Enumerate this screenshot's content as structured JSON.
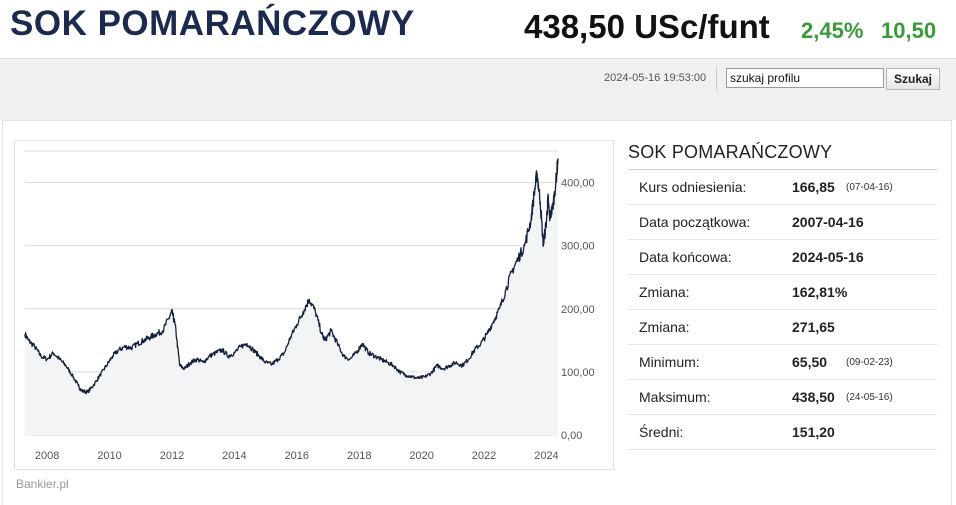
{
  "header": {
    "title": "SOK POMARAŃCZOWY",
    "price": "438,50 USc/funt",
    "change_percent": "2,45%",
    "change_value": "10,50"
  },
  "toolbar": {
    "timestamp": "2024-05-16 19:53:00",
    "search_value": "szukaj profilu",
    "search_button": "Szukaj"
  },
  "colors": {
    "title": "#1c2a4e",
    "positive": "#3a9a3a",
    "line": "#14213d",
    "area": "#f3f4f6"
  },
  "brand": "Bankier.pl",
  "info": {
    "title": "SOK POMARAŃCZOWY",
    "rows": [
      {
        "label": "Kurs odniesienia:",
        "value": "166,85",
        "date": "(07-04-16)"
      },
      {
        "label": "Data początkowa:",
        "value": "2007-04-16",
        "date": ""
      },
      {
        "label": "Data końcowa:",
        "value": "2024-05-16",
        "date": ""
      },
      {
        "label": "Zmiana:",
        "value": "162,81%",
        "date": ""
      },
      {
        "label": "Zmiana:",
        "value": "271,65",
        "date": ""
      },
      {
        "label": "Minimum:",
        "value": "65,50",
        "date": "(09-02-23)"
      },
      {
        "label": "Maksimum:",
        "value": "438,50",
        "date": "(24-05-16)"
      },
      {
        "label": "Średni:",
        "value": "151,20",
        "date": ""
      }
    ]
  },
  "chart_data": {
    "type": "area",
    "title": "",
    "xlabel": "",
    "ylabel": "",
    "x_range": [
      2007.29,
      2024.37
    ],
    "ylim": [
      0,
      450
    ],
    "grid": true,
    "legend": "none",
    "x_ticks": [
      2008,
      2010,
      2012,
      2014,
      2016,
      2018,
      2020,
      2022,
      2024
    ],
    "x_tick_labels": [
      "2008",
      "2010",
      "2012",
      "2014",
      "2016",
      "2018",
      "2020",
      "2022",
      "2024"
    ],
    "y_ticks": [
      0,
      100,
      200,
      300,
      400
    ],
    "y_tick_labels": [
      "0,00",
      "100,00",
      "200,00",
      "300,00",
      "400,00"
    ],
    "series": [
      {
        "x": [
          2007.29,
          2007.4,
          2007.6,
          2007.8,
          2008.0,
          2008.2,
          2008.4,
          2008.6,
          2008.8,
          2009.0,
          2009.1,
          2009.3,
          2009.5,
          2009.7,
          2009.9,
          2010.1,
          2010.3,
          2010.5,
          2010.7,
          2010.9,
          2011.1,
          2011.3,
          2011.5,
          2011.7,
          2011.9,
          2012.0,
          2012.1,
          2012.25,
          2012.4,
          2012.6,
          2012.8,
          2013.0,
          2013.2,
          2013.4,
          2013.6,
          2013.8,
          2014.0,
          2014.2,
          2014.4,
          2014.6,
          2014.8,
          2015.0,
          2015.2,
          2015.4,
          2015.6,
          2015.8,
          2016.0,
          2016.2,
          2016.4,
          2016.6,
          2016.8,
          2016.9,
          2017.1,
          2017.3,
          2017.5,
          2017.7,
          2017.9,
          2018.1,
          2018.3,
          2018.5,
          2018.7,
          2018.9,
          2019.1,
          2019.3,
          2019.5,
          2019.7,
          2019.9,
          2020.1,
          2020.3,
          2020.5,
          2020.7,
          2020.9,
          2021.1,
          2021.3,
          2021.5,
          2021.7,
          2021.9,
          2022.1,
          2022.3,
          2022.5,
          2022.7,
          2022.9,
          2023.1,
          2023.3,
          2023.5,
          2023.6,
          2023.7,
          2023.8,
          2023.9,
          2024.0,
          2024.05,
          2024.1,
          2024.2,
          2024.3,
          2024.37
        ],
        "values": [
          160,
          150,
          140,
          125,
          120,
          130,
          120,
          110,
          95,
          78,
          70,
          68,
          80,
          95,
          110,
          125,
          135,
          140,
          138,
          145,
          150,
          155,
          160,
          165,
          185,
          195,
          175,
          110,
          105,
          115,
          120,
          115,
          125,
          130,
          135,
          125,
          130,
          140,
          145,
          135,
          125,
          115,
          112,
          120,
          130,
          155,
          175,
          195,
          215,
          195,
          160,
          150,
          165,
          145,
          125,
          120,
          130,
          145,
          130,
          125,
          120,
          115,
          110,
          100,
          95,
          92,
          90,
          92,
          98,
          110,
          105,
          110,
          115,
          110,
          120,
          135,
          145,
          160,
          180,
          200,
          230,
          260,
          280,
          300,
          340,
          380,
          415,
          370,
          300,
          340,
          375,
          345,
          360,
          400,
          438.5
        ]
      }
    ]
  }
}
